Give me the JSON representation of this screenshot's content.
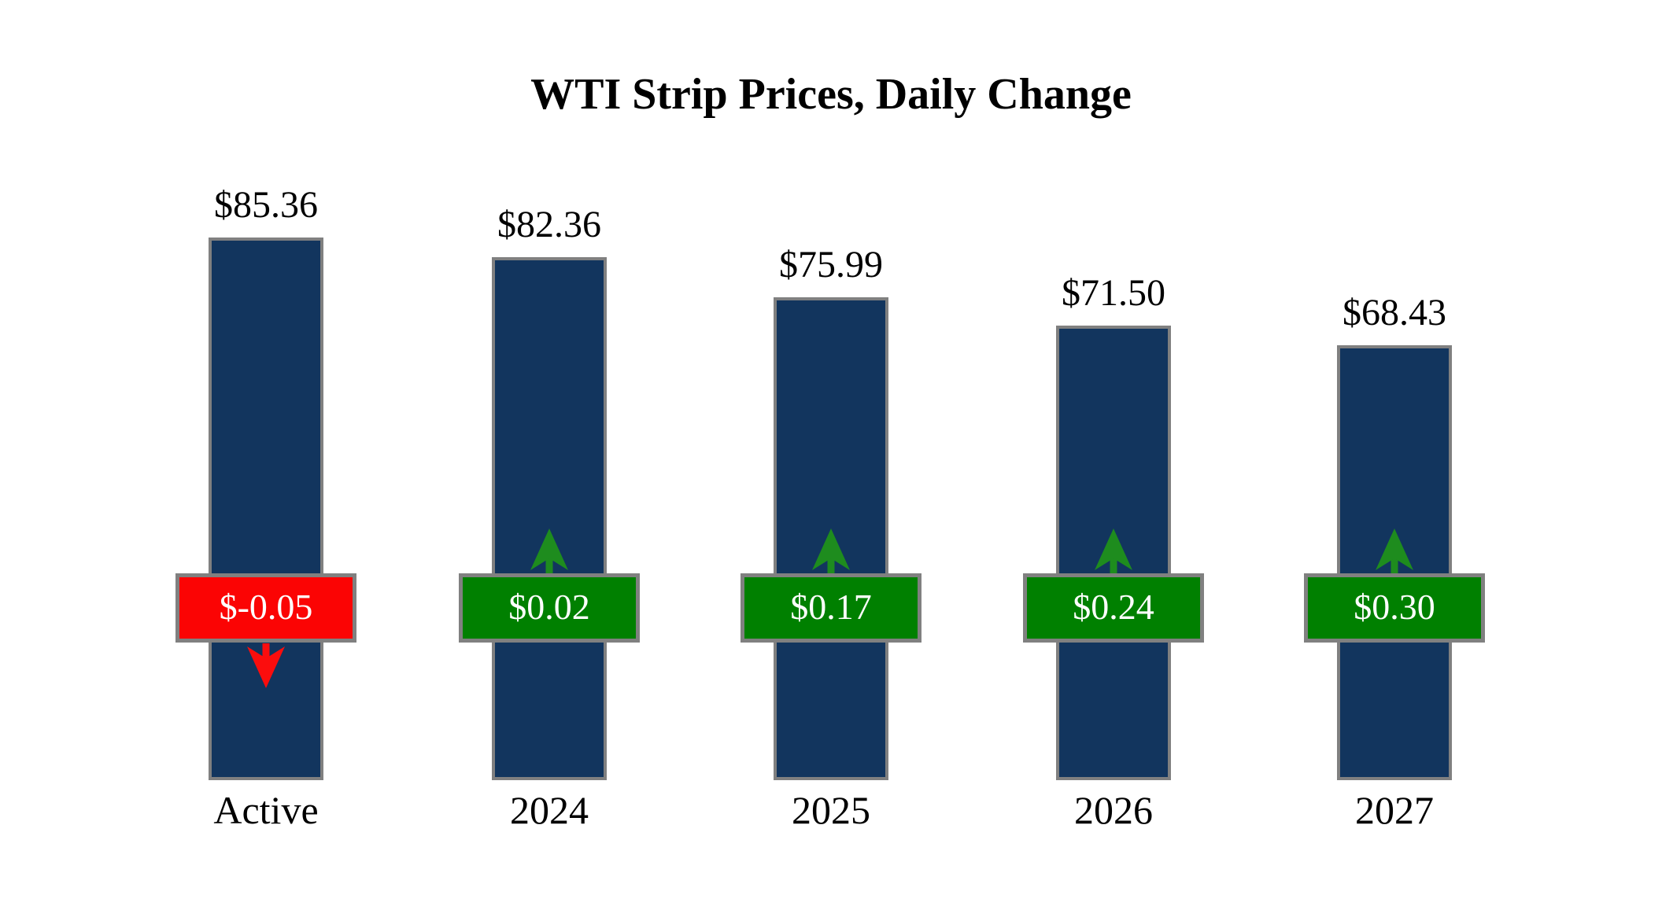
{
  "title": "WTI Strip Prices, Daily Change",
  "colors": {
    "background": "#FFFFFF",
    "bar": "#12355E",
    "border": "#808080",
    "positive": "#008000",
    "negative": "#FB0404",
    "arrow_up": "#1E8C1E",
    "arrow_down": "#FB0D0D",
    "badge_text": "#FFFFFF",
    "label_text": "#000000"
  },
  "chart_data": {
    "type": "bar",
    "title": "WTI Strip Prices, Daily Change",
    "categories": [
      "Active",
      "2024",
      "2025",
      "2026",
      "2027"
    ],
    "series": [
      {
        "name": "Strip Price",
        "values": [
          85.36,
          82.36,
          75.99,
          71.5,
          68.43
        ]
      },
      {
        "name": "Daily Change",
        "values": [
          -0.05,
          0.02,
          0.17,
          0.24,
          0.3
        ]
      }
    ],
    "price_labels": [
      "$85.36",
      "$82.36",
      "$75.99",
      "$71.50",
      "$68.43"
    ],
    "change_labels": [
      "$-0.05",
      "$0.02",
      "$0.17",
      "$0.24",
      "$0.30"
    ],
    "change_directions": [
      "down",
      "up",
      "up",
      "up",
      "up"
    ],
    "ylim": [
      0,
      92
    ],
    "grid": false,
    "legend": "none",
    "bar_baseline": 0
  }
}
